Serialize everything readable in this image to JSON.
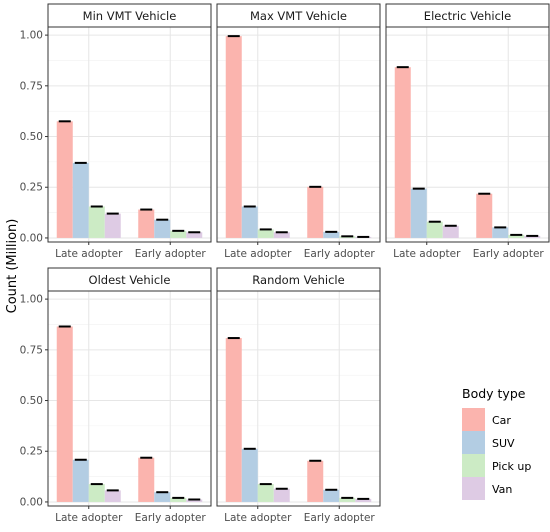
{
  "chart_data": {
    "type": "bar",
    "ylabel": "Count (Million)",
    "ylim": [
      -0.02,
      1.04
    ],
    "yticks": [
      "0.00",
      "0.25",
      "0.50",
      "0.75",
      "1.00"
    ],
    "ytick_values": [
      0,
      0.25,
      0.5,
      0.75,
      1.0
    ],
    "categories": [
      "Late adopter",
      "Early adopter"
    ],
    "grid": true,
    "legend": {
      "title": "Body type",
      "placement": "right",
      "entries": [
        "Car",
        "SUV",
        "Pick up",
        "Van"
      ]
    },
    "colors": {
      "Car": "#FBB4AE",
      "SUV": "#B3CDE3",
      "Pick up": "#CCEBC5",
      "Van": "#DECBE4"
    },
    "panels": [
      {
        "title": "Min VMT Vehicle",
        "series": [
          {
            "name": "Car",
            "values": [
              0.575,
              0.14
            ]
          },
          {
            "name": "SUV",
            "values": [
              0.37,
              0.09
            ]
          },
          {
            "name": "Pick up",
            "values": [
              0.155,
              0.035
            ]
          },
          {
            "name": "Van",
            "values": [
              0.12,
              0.028
            ]
          }
        ]
      },
      {
        "title": "Max VMT Vehicle",
        "series": [
          {
            "name": "Car",
            "values": [
              0.995,
              0.252
            ]
          },
          {
            "name": "SUV",
            "values": [
              0.155,
              0.03
            ]
          },
          {
            "name": "Pick up",
            "values": [
              0.042,
              0.008
            ]
          },
          {
            "name": "Van",
            "values": [
              0.028,
              0.005
            ]
          }
        ]
      },
      {
        "title": "Electric Vehicle",
        "series": [
          {
            "name": "Car",
            "values": [
              0.842,
              0.218
            ]
          },
          {
            "name": "SUV",
            "values": [
              0.243,
              0.052
            ]
          },
          {
            "name": "Pick up",
            "values": [
              0.08,
              0.015
            ]
          },
          {
            "name": "Van",
            "values": [
              0.06,
              0.01
            ]
          }
        ]
      },
      {
        "title": "Oldest Vehicle",
        "series": [
          {
            "name": "Car",
            "values": [
              0.865,
              0.218
            ]
          },
          {
            "name": "SUV",
            "values": [
              0.208,
              0.048
            ]
          },
          {
            "name": "Pick up",
            "values": [
              0.088,
              0.02
            ]
          },
          {
            "name": "Van",
            "values": [
              0.057,
              0.012
            ]
          }
        ]
      },
      {
        "title": "Random Vehicle",
        "series": [
          {
            "name": "Car",
            "values": [
              0.808,
              0.203
            ]
          },
          {
            "name": "SUV",
            "values": [
              0.262,
              0.06
            ]
          },
          {
            "name": "Pick up",
            "values": [
              0.088,
              0.02
            ]
          },
          {
            "name": "Van",
            "values": [
              0.065,
              0.015
            ]
          }
        ]
      }
    ]
  }
}
